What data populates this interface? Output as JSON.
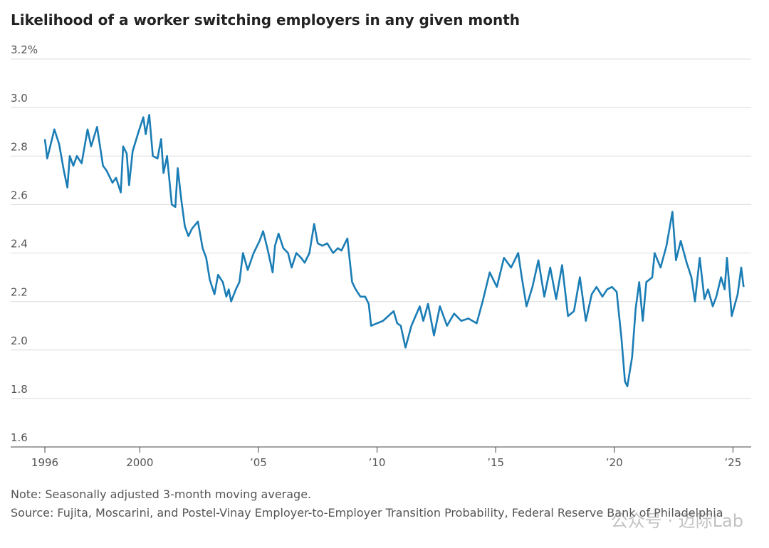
{
  "chart_data": {
    "type": "line",
    "title": "Likelihood of a worker switching employers in any given month",
    "note": "Note: Seasonally adjusted 3-month moving average.",
    "source": "Source: Fujita, Moscarini, and Postel-Vinay Employer-to-Employer Transition Probability, Federal Reserve Bank of Philadelphia",
    "watermark": "公众号 · 迈际Lab",
    "xlim": [
      1996,
      2025.5
    ],
    "ylim": [
      1.6,
      3.2
    ],
    "xticks": [
      1996,
      2000,
      {
        "value": 2005,
        "label": "’05"
      },
      {
        "value": 2010,
        "label": "’10"
      },
      {
        "value": 2015,
        "label": "’15"
      },
      {
        "value": 2020,
        "label": "’20"
      },
      {
        "value": 2025,
        "label": "’25"
      }
    ],
    "yticks": [
      1.6,
      1.8,
      {
        "value": 2.0,
        "label": "2.0"
      },
      2.2,
      2.4,
      2.6,
      2.8,
      {
        "value": 3.0,
        "label": "3.0"
      },
      {
        "value": 3.2,
        "label": "3.2%"
      }
    ],
    "grid": true,
    "series": [
      {
        "color": "#1b7db5",
        "x": [
          1996.0,
          1996.1,
          1996.2,
          1996.4,
          1996.6,
          1996.8,
          1996.95,
          1997.05,
          1997.2,
          1997.35,
          1997.55,
          1997.8,
          1997.95,
          1998.2,
          1998.45,
          1998.6,
          1998.85,
          1999.0,
          1999.2,
          1999.3,
          1999.45,
          1999.55,
          1999.7,
          1999.95,
          2000.15,
          2000.25,
          2000.4,
          2000.55,
          2000.75,
          2000.9,
          2001.0,
          2001.15,
          2001.35,
          2001.5,
          2001.6,
          2001.75,
          2001.9,
          2002.05,
          2002.2,
          2002.45,
          2002.65,
          2002.8,
          2002.95,
          2003.15,
          2003.3,
          2003.5,
          2003.65,
          2003.75,
          2003.85,
          2004.05,
          2004.2,
          2004.35,
          2004.55,
          2004.8,
          2005.05,
          2005.2,
          2005.4,
          2005.6,
          2005.7,
          2005.85,
          2006.05,
          2006.25,
          2006.4,
          2006.6,
          2006.8,
          2006.95,
          2007.15,
          2007.35,
          2007.5,
          2007.7,
          2007.9,
          2008.15,
          2008.35,
          2008.5,
          2008.65,
          2008.75,
          2008.95,
          2009.1,
          2009.3,
          2009.5,
          2009.65,
          2009.75,
          2010.25,
          2010.7,
          2010.85,
          2011.0,
          2011.2,
          2011.45,
          2011.8,
          2011.95,
          2012.15,
          2012.4,
          2012.65,
          2012.95,
          2013.25,
          2013.55,
          2013.85,
          2014.2,
          2014.45,
          2014.75,
          2015.05,
          2015.35,
          2015.65,
          2015.95,
          2016.1,
          2016.3,
          2016.55,
          2016.8,
          2017.05,
          2017.3,
          2017.55,
          2017.8,
          2018.05,
          2018.3,
          2018.55,
          2018.8,
          2019.05,
          2019.25,
          2019.5,
          2019.7,
          2019.9,
          2020.1,
          2020.3,
          2020.45,
          2020.55,
          2020.75,
          2020.9,
          2021.05,
          2021.2,
          2021.35,
          2021.6,
          2021.7,
          2021.95,
          2022.2,
          2022.45,
          2022.6,
          2022.8,
          2023.05,
          2023.25,
          2023.4,
          2023.6,
          2023.8,
          2023.95,
          2024.15,
          2024.3,
          2024.5,
          2024.65,
          2024.75,
          2024.95,
          2025.2,
          2025.35,
          2025.45
        ],
        "values": [
          2.87,
          2.79,
          2.83,
          2.91,
          2.85,
          2.74,
          2.67,
          2.8,
          2.76,
          2.8,
          2.77,
          2.91,
          2.84,
          2.92,
          2.76,
          2.74,
          2.69,
          2.71,
          2.65,
          2.84,
          2.81,
          2.68,
          2.82,
          2.9,
          2.96,
          2.89,
          2.97,
          2.8,
          2.79,
          2.87,
          2.73,
          2.8,
          2.6,
          2.59,
          2.75,
          2.62,
          2.51,
          2.47,
          2.5,
          2.53,
          2.42,
          2.38,
          2.29,
          2.23,
          2.31,
          2.28,
          2.22,
          2.25,
          2.2,
          2.25,
          2.28,
          2.4,
          2.33,
          2.4,
          2.45,
          2.49,
          2.41,
          2.32,
          2.43,
          2.48,
          2.42,
          2.4,
          2.34,
          2.4,
          2.38,
          2.36,
          2.4,
          2.52,
          2.44,
          2.43,
          2.44,
          2.4,
          2.42,
          2.41,
          2.44,
          2.46,
          2.28,
          2.25,
          2.22,
          2.22,
          2.19,
          2.1,
          2.12,
          2.16,
          2.11,
          2.1,
          2.01,
          2.1,
          2.18,
          2.12,
          2.19,
          2.06,
          2.18,
          2.1,
          2.15,
          2.12,
          2.13,
          2.11,
          2.2,
          2.32,
          2.26,
          2.38,
          2.34,
          2.4,
          2.3,
          2.18,
          2.26,
          2.37,
          2.22,
          2.34,
          2.21,
          2.35,
          2.14,
          2.16,
          2.3,
          2.12,
          2.23,
          2.26,
          2.22,
          2.25,
          2.26,
          2.24,
          2.05,
          1.87,
          1.85,
          1.97,
          2.17,
          2.28,
          2.12,
          2.28,
          2.3,
          2.4,
          2.34,
          2.43,
          2.57,
          2.37,
          2.45,
          2.36,
          2.3,
          2.2,
          2.38,
          2.21,
          2.25,
          2.18,
          2.22,
          2.3,
          2.25,
          2.38,
          2.14,
          2.23,
          2.34,
          2.26
        ]
      }
    ]
  }
}
